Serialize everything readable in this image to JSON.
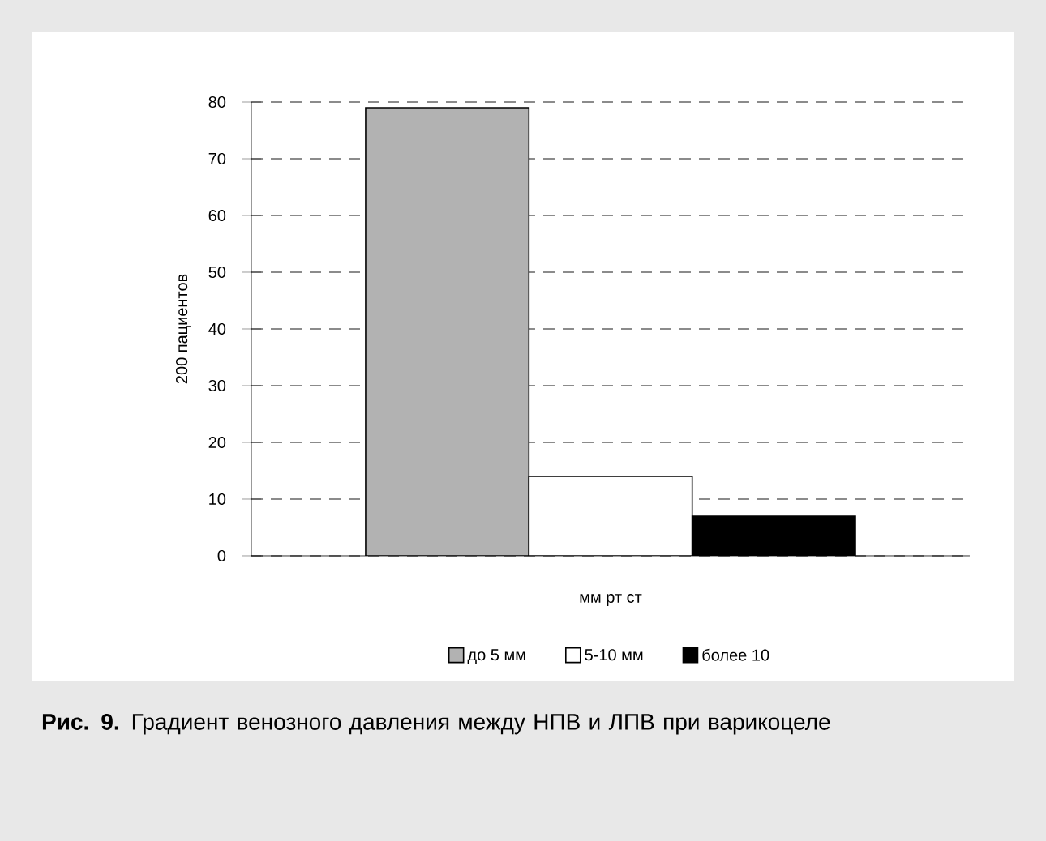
{
  "chart_data": {
    "type": "bar",
    "title": "**Рис. 9.** Градиент венозного давления между НПВ и ЛПВ при варикоцеле",
    "ylabel": "200 пациентов",
    "categories": [
      "мм рт ст"
    ],
    "series": [
      {
        "name": "до 5 мм",
        "color": "#b2b2b2",
        "values": [
          79
        ]
      },
      {
        "name": "5-10 мм",
        "color": "#ffffff",
        "values": [
          14
        ]
      },
      {
        "name": "более 10",
        "color": "#000000",
        "values": [
          7
        ]
      }
    ],
    "ylim": [
      0,
      80
    ],
    "yticks": [
      0,
      10,
      20,
      30,
      40,
      50,
      60,
      70,
      80
    ],
    "grid": "y",
    "legend": "bottom"
  }
}
